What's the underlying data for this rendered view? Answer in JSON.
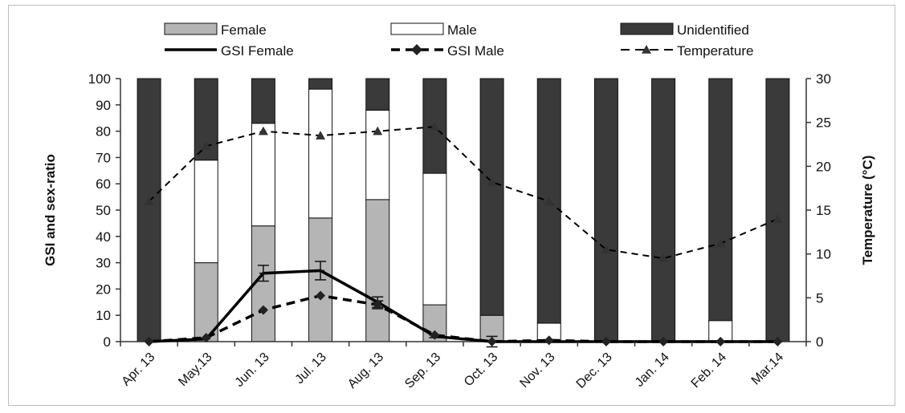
{
  "chart_data": {
    "type": "bar",
    "stacked": true,
    "categories": [
      "Apr. 13",
      "May.13",
      "Jun. 13",
      "Jul. 13",
      "Aug. 13",
      "Sep. 13",
      "Oct. 13",
      "Nov. 13",
      "Dec. 13",
      "Jan. 14",
      "Feb. 14",
      "Mar.14"
    ],
    "ylabel": "GSI and sex-ratio",
    "ylabel_right": "Temperature (°C)",
    "ylim": [
      0,
      100
    ],
    "ylim_right": [
      0,
      30
    ],
    "yticks": [
      0,
      10,
      20,
      30,
      40,
      50,
      60,
      70,
      80,
      90,
      100
    ],
    "yticks_right": [
      0,
      5,
      10,
      15,
      20,
      25,
      30
    ],
    "grid": false,
    "legend_position": "top",
    "series": [
      {
        "name": "Female",
        "kind": "bar",
        "color": "#b5b5b5",
        "values": [
          0,
          30,
          44,
          47,
          54,
          14,
          10,
          0,
          0,
          0,
          0,
          0
        ]
      },
      {
        "name": "Male",
        "kind": "bar",
        "color": "#ffffff",
        "values": [
          0,
          39,
          39,
          49,
          34,
          50,
          0,
          7,
          0,
          0,
          8,
          0
        ]
      },
      {
        "name": "Unidentified",
        "kind": "bar",
        "color": "#3a3a3a",
        "values": [
          100,
          31,
          17,
          4,
          12,
          36,
          90,
          93,
          100,
          100,
          92,
          100
        ]
      },
      {
        "name": "GSI Female",
        "kind": "line",
        "axis": "left",
        "style": "solid",
        "color": "#000000",
        "values": [
          0,
          1,
          26,
          27,
          15,
          2,
          0,
          0,
          0,
          0,
          0,
          0
        ],
        "errors": [
          0,
          0,
          3,
          3.5,
          2,
          0.5,
          0,
          0,
          0,
          0,
          0,
          0
        ]
      },
      {
        "name": "GSI Male",
        "kind": "line",
        "axis": "left",
        "style": "dashed",
        "marker": "diamond",
        "color": "#000000",
        "values": [
          0,
          1.5,
          12,
          17.5,
          14,
          2.5,
          0,
          0.5,
          0,
          0,
          0,
          0
        ],
        "errors": [
          0,
          0,
          0,
          0,
          1.5,
          0,
          2,
          0,
          0,
          0,
          0,
          0
        ]
      },
      {
        "name": "Temperature",
        "kind": "line",
        "axis": "right",
        "style": "dashed",
        "marker": "triangle",
        "color": "#000000",
        "values": [
          16,
          22.3,
          24,
          23.5,
          24,
          24.5,
          18.2,
          16,
          10.5,
          9.5,
          11.2,
          14
        ]
      }
    ]
  }
}
